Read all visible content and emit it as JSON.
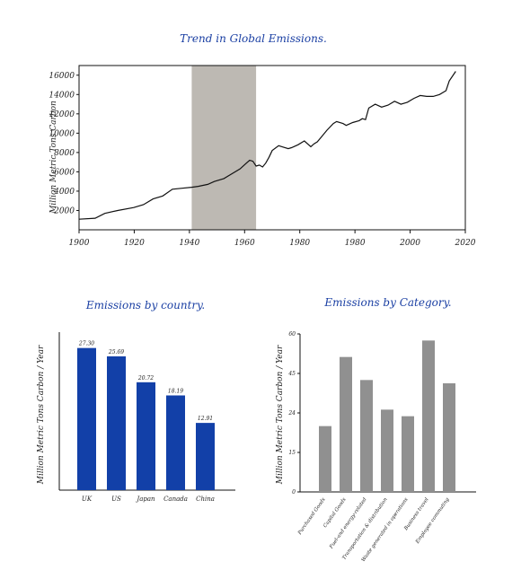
{
  "chart_data": [
    {
      "type": "line",
      "title": "Trend in Global Emissions.",
      "xlabel": "",
      "ylabel": "Million Metric Tons Carbon",
      "xlim": [
        1900,
        2020
      ],
      "ylim": [
        0,
        17000
      ],
      "x_ticks": [
        "1900",
        "1920",
        "1940",
        "1960",
        "1980",
        "1980",
        "2000",
        "2020"
      ],
      "y_ticks": [
        "2000",
        "4000",
        "6000",
        "8000",
        "10000",
        "12000",
        "14000",
        "16000"
      ],
      "shaded_region": [
        1935,
        1955
      ],
      "x": [
        1900,
        1905,
        1908,
        1912,
        1917,
        1920,
        1923,
        1926,
        1929,
        1932,
        1935,
        1937,
        1940,
        1942,
        1945,
        1947,
        1950,
        1952,
        1953,
        1954,
        1955,
        1956,
        1957,
        1958,
        1959,
        1960,
        1962,
        1963,
        1965,
        1966,
        1968,
        1970,
        1972,
        1973,
        1974,
        1975,
        1977,
        1979,
        1980,
        1982,
        1983,
        1985,
        1987,
        1988,
        1989,
        1990,
        1992,
        1994,
        1996,
        1998,
        2000,
        2002,
        2004,
        2006,
        2008,
        2009,
        2010,
        2012,
        2014,
        2015,
        2017
      ],
      "y": [
        1100,
        1200,
        1700,
        2000,
        2300,
        2600,
        3200,
        3500,
        4200,
        4300,
        4400,
        4500,
        4700,
        5000,
        5300,
        5700,
        6300,
        6900,
        7200,
        7100,
        6600,
        6700,
        6500,
        6900,
        7500,
        8200,
        8700,
        8600,
        8400,
        8500,
        8800,
        9200,
        8600,
        8900,
        9100,
        9500,
        10300,
        11000,
        11200,
        11000,
        10800,
        11100,
        11300,
        11500,
        11400,
        12600,
        13000,
        12700,
        12900,
        13300,
        13000,
        13200,
        13600,
        13900,
        13800,
        13800,
        13800,
        14000,
        14400,
        15400,
        16400
      ]
    },
    {
      "type": "bar",
      "title": "Emissions by country.",
      "xlabel": "",
      "ylabel": "Million Metric Tons Carbon / Year",
      "categories": [
        "UK",
        "US",
        "Japan",
        "Canada",
        "China"
      ],
      "values": [
        27.3,
        25.69,
        20.72,
        18.19,
        12.91
      ],
      "value_labels": [
        "27.30",
        "25.69",
        "20.72",
        "18.19",
        "12.91"
      ],
      "ylim": [
        0,
        30
      ],
      "bar_color": "#1240a8"
    },
    {
      "type": "bar",
      "title": "Emissions by Category.",
      "xlabel": "",
      "ylabel": "Million Metric Tons Carbon / Year",
      "categories": [
        "Purchased Goods",
        "Capital Goods",
        "Fuel-and energy-related",
        "Transportation & distribution",
        "Waste generated in operations",
        "Business travel",
        "Employee commuting"
      ],
      "values": [
        20,
        41,
        34,
        25,
        23,
        46,
        33
      ],
      "y_ticks": [
        "0",
        "15",
        "24",
        "45",
        "60"
      ],
      "ylim": [
        0,
        48
      ],
      "bar_color": "#909090"
    }
  ],
  "colors": {
    "title": "#1a3fa3",
    "shade": "#bdb9b3",
    "axis": "#111111"
  }
}
